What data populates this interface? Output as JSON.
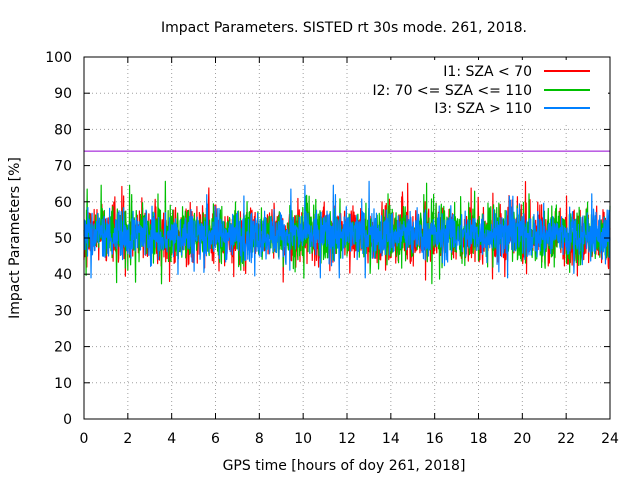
{
  "chart_data": {
    "type": "line",
    "title": "Impact Parameters. SISTED rt 30s mode. 261, 2018.",
    "xlabel": "GPS time [hours of doy 261, 2018]",
    "ylabel": "Impact Parameters [%]",
    "xlim": [
      0,
      24
    ],
    "ylim": [
      0,
      100
    ],
    "xticks": [
      0,
      2,
      4,
      6,
      8,
      10,
      12,
      14,
      16,
      18,
      20,
      22,
      24
    ],
    "yticks": [
      0,
      10,
      20,
      30,
      40,
      50,
      60,
      70,
      80,
      90,
      100
    ],
    "grid": true,
    "legend_position": "top-right",
    "threshold": {
      "value": 74,
      "color": "#9400d3"
    },
    "series": [
      {
        "name": "I1: SZA < 70",
        "color": "#ff0000",
        "center": 51,
        "spread": 4,
        "min": 35.5,
        "max": 66
      },
      {
        "name": "I2: 70 <= SZA <= 110",
        "color": "#00c000",
        "center": 51,
        "spread": 4,
        "min": 36,
        "max": 67
      },
      {
        "name": "I3: SZA > 110",
        "color": "#0080ff",
        "center": 51,
        "spread": 3.5,
        "min": 39,
        "max": 66
      }
    ]
  }
}
